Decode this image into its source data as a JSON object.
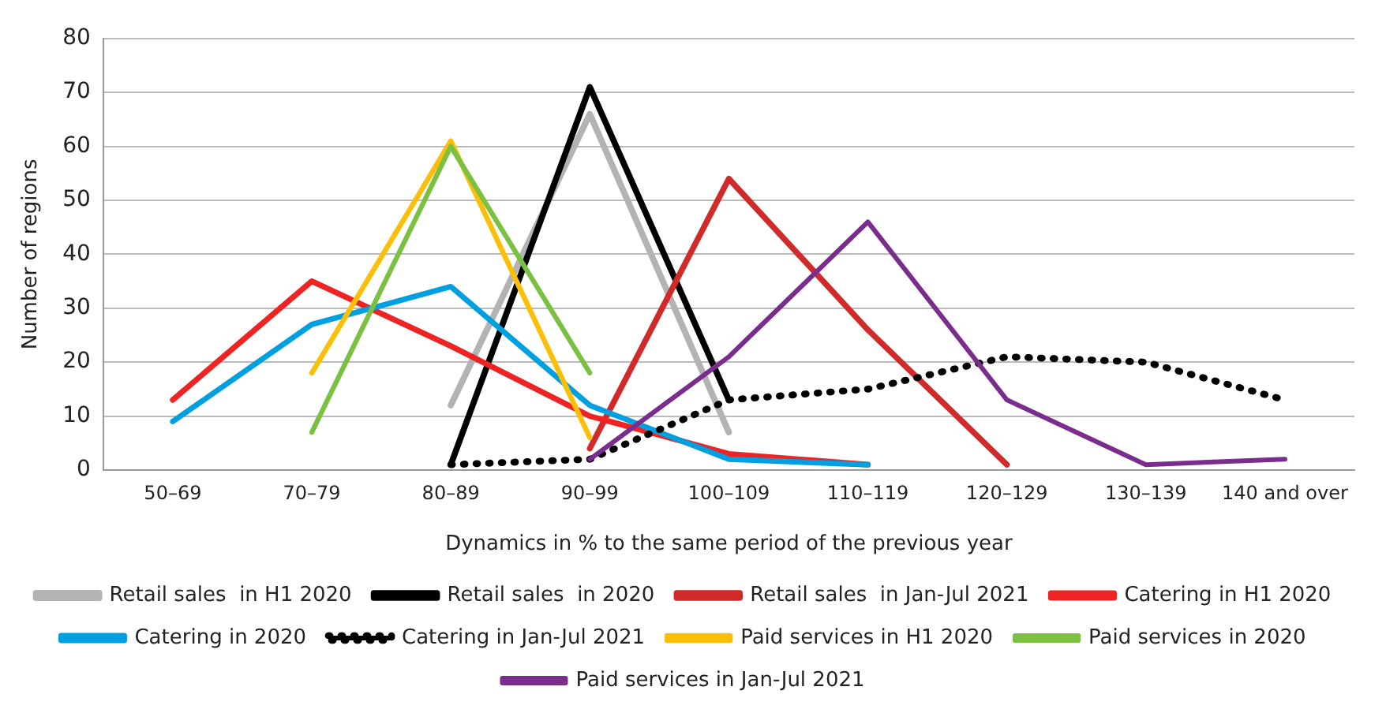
{
  "chart_data": {
    "type": "line",
    "xlabel": "Dynamics in % to the same period of the previous year",
    "ylabel": "Number of regions",
    "categories": [
      "50–69",
      "70–79",
      "80–89",
      "90–99",
      "100–109",
      "110–119",
      "120–129",
      "130–139",
      "140 and over"
    ],
    "ylim": [
      0,
      80
    ],
    "yticks": [
      0,
      10,
      20,
      30,
      40,
      50,
      60,
      70,
      80
    ],
    "grid": "y",
    "legend": "bottom",
    "marker": "none",
    "line_style": "solid",
    "series": [
      {
        "name": "Retail sales  in H1 2020",
        "color": "#b3b3b3",
        "values": [
          null,
          null,
          12,
          66,
          7,
          null,
          null,
          null,
          null
        ]
      },
      {
        "name": "Retail sales  in 2020",
        "color": "#000000",
        "values": [
          null,
          null,
          1,
          71,
          13,
          null,
          null,
          null,
          null
        ]
      },
      {
        "name": "Retail sales  in Jan-Jul 2021",
        "color": "#d02a2a",
        "values": [
          null,
          null,
          null,
          4,
          54,
          26,
          1,
          null,
          null
        ]
      },
      {
        "name": "Catering in H1 2020",
        "color": "#ee2424",
        "values": [
          13,
          35,
          23,
          10,
          3,
          1,
          null,
          null,
          null
        ]
      },
      {
        "name": "Catering in 2020",
        "color": "#00a0e0",
        "values": [
          9,
          27,
          34,
          12,
          2,
          1,
          null,
          null,
          null
        ]
      },
      {
        "name": "Catering in Jan-Jul 2021",
        "color": "#000000",
        "line_style": "dotted",
        "values": [
          null,
          null,
          1,
          2,
          13,
          15,
          21,
          20,
          13
        ]
      },
      {
        "name": "Paid services in H1 2020",
        "color": "#fbbf0a",
        "values": [
          null,
          18,
          61,
          6,
          null,
          null,
          null,
          null,
          null
        ]
      },
      {
        "name": "Paid services in 2020",
        "color": "#7ac142",
        "values": [
          null,
          7,
          60,
          18,
          null,
          null,
          null,
          null,
          null
        ]
      },
      {
        "name": "Paid services in Jan-Jul 2021",
        "color": "#7b2d8e",
        "values": [
          null,
          null,
          null,
          2,
          21,
          46,
          13,
          1,
          2
        ]
      }
    ]
  }
}
